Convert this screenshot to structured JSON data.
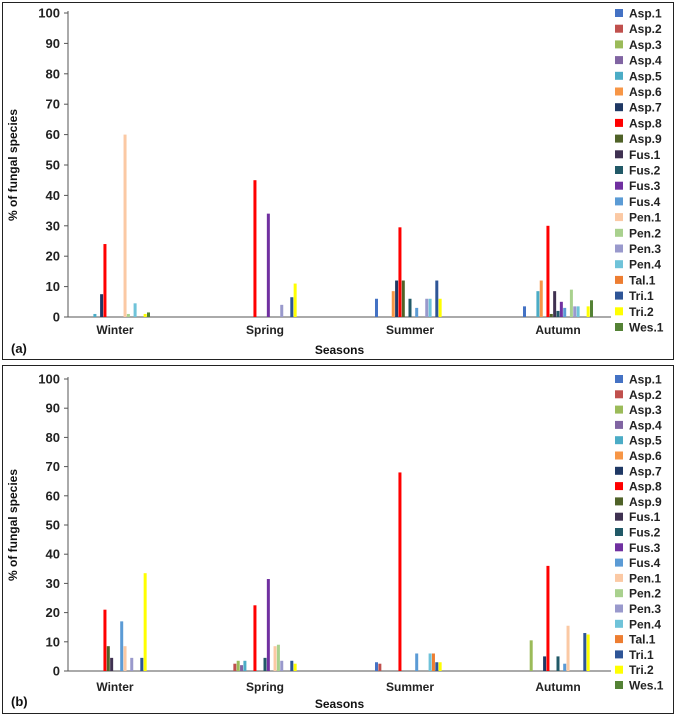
{
  "chart_data": [
    {
      "type": "bar",
      "panel_label": "(a)",
      "xlabel": "Seasons",
      "ylabel": "% of fungal species",
      "ylim": [
        0,
        100
      ],
      "yticks": [
        "0",
        "10",
        "20",
        "30",
        "40",
        "50",
        "60",
        "70",
        "80",
        "90",
        "100"
      ],
      "categories": [
        "Winter",
        "Spring",
        "Summer",
        "Autumn"
      ],
      "series": [
        {
          "name": "Asp.1",
          "color": "#4472C4",
          "values": [
            0,
            0,
            6,
            3.5
          ]
        },
        {
          "name": "Asp.2",
          "color": "#C0504D",
          "values": [
            0,
            0,
            0,
            0
          ]
        },
        {
          "name": "Asp.3",
          "color": "#9BBB59",
          "values": [
            0,
            0,
            0,
            0
          ]
        },
        {
          "name": "Asp.4",
          "color": "#8064A2",
          "values": [
            0,
            0,
            0,
            0
          ]
        },
        {
          "name": "Asp.5",
          "color": "#4BACC6",
          "values": [
            1,
            0,
            0,
            8.5
          ]
        },
        {
          "name": "Asp.6",
          "color": "#F79646",
          "values": [
            0,
            0,
            8.5,
            12
          ]
        },
        {
          "name": "Asp.7",
          "color": "#1F3864",
          "values": [
            7.5,
            0,
            12,
            0
          ]
        },
        {
          "name": "Asp.8",
          "color": "#FF0000",
          "values": [
            24,
            45,
            29.5,
            30
          ]
        },
        {
          "name": "Asp.9",
          "color": "#4F6228",
          "values": [
            0,
            0,
            12,
            1
          ]
        },
        {
          "name": "Fus.1",
          "color": "#3F3151",
          "values": [
            0,
            0,
            0,
            8.5
          ]
        },
        {
          "name": "Fus.2",
          "color": "#215967",
          "values": [
            0,
            0,
            6,
            2
          ]
        },
        {
          "name": "Fus.3",
          "color": "#7030A0",
          "values": [
            0,
            34,
            0,
            5
          ]
        },
        {
          "name": "Fus.4",
          "color": "#5B9BD5",
          "values": [
            0,
            0,
            3,
            3
          ]
        },
        {
          "name": "Pen.1",
          "color": "#FBC9A4",
          "values": [
            60,
            0,
            0,
            0
          ]
        },
        {
          "name": "Pen.2",
          "color": "#A9D18E",
          "values": [
            1,
            0,
            0,
            9
          ]
        },
        {
          "name": "Pen.3",
          "color": "#9999CC",
          "values": [
            0,
            4,
            6,
            3.5
          ]
        },
        {
          "name": "Pen.4",
          "color": "#6FC3D9",
          "values": [
            4.5,
            0,
            6,
            3.5
          ]
        },
        {
          "name": "Tal.1",
          "color": "#ED7D31",
          "values": [
            0,
            0,
            0,
            0
          ]
        },
        {
          "name": "Tri.1",
          "color": "#2E5597",
          "values": [
            0,
            6.5,
            12,
            0
          ]
        },
        {
          "name": "Tri.2",
          "color": "#FFFF00",
          "values": [
            1,
            11,
            6,
            3.5
          ]
        },
        {
          "name": "Wes.1",
          "color": "#548235",
          "values": [
            1.5,
            0,
            0,
            5.5
          ]
        }
      ]
    },
    {
      "type": "bar",
      "panel_label": "(b)",
      "xlabel": "Seasons",
      "ylabel": "% of fungal species",
      "ylim": [
        0,
        100
      ],
      "yticks": [
        "0",
        "10",
        "20",
        "30",
        "40",
        "50",
        "60",
        "70",
        "80",
        "90",
        "100"
      ],
      "categories": [
        "Winter",
        "Spring",
        "Summer",
        "Autumn"
      ],
      "series": [
        {
          "name": "Asp.1",
          "color": "#4472C4",
          "values": [
            0,
            0,
            3,
            0
          ]
        },
        {
          "name": "Asp.2",
          "color": "#C0504D",
          "values": [
            0,
            2.5,
            2.5,
            0
          ]
        },
        {
          "name": "Asp.3",
          "color": "#9BBB59",
          "values": [
            0,
            3.5,
            0,
            10.5
          ]
        },
        {
          "name": "Asp.4",
          "color": "#8064A2",
          "values": [
            0,
            2,
            0,
            0
          ]
        },
        {
          "name": "Asp.5",
          "color": "#4BACC6",
          "values": [
            0,
            3.5,
            0,
            0
          ]
        },
        {
          "name": "Asp.6",
          "color": "#F79646",
          "values": [
            0,
            0,
            0,
            0
          ]
        },
        {
          "name": "Asp.7",
          "color": "#1F3864",
          "values": [
            0,
            0,
            0,
            5
          ]
        },
        {
          "name": "Asp.8",
          "color": "#FF0000",
          "values": [
            21,
            22.5,
            68,
            36
          ]
        },
        {
          "name": "Asp.9",
          "color": "#4F6228",
          "values": [
            8.5,
            0,
            0,
            0
          ]
        },
        {
          "name": "Fus.1",
          "color": "#3F3151",
          "values": [
            4.5,
            0,
            0,
            0
          ]
        },
        {
          "name": "Fus.2",
          "color": "#215967",
          "values": [
            0,
            4.5,
            0,
            5
          ]
        },
        {
          "name": "Fus.3",
          "color": "#7030A0",
          "values": [
            0,
            31.5,
            0,
            0
          ]
        },
        {
          "name": "Fus.4",
          "color": "#5B9BD5",
          "values": [
            17,
            0,
            6,
            2.5
          ]
        },
        {
          "name": "Pen.1",
          "color": "#FBC9A4",
          "values": [
            8.5,
            8.5,
            0,
            15.5
          ]
        },
        {
          "name": "Pen.2",
          "color": "#A9D18E",
          "values": [
            0,
            9,
            0,
            0
          ]
        },
        {
          "name": "Pen.3",
          "color": "#9999CC",
          "values": [
            4.5,
            3.5,
            0,
            0
          ]
        },
        {
          "name": "Pen.4",
          "color": "#6FC3D9",
          "values": [
            0,
            0,
            6,
            0
          ]
        },
        {
          "name": "Tal.1",
          "color": "#ED7D31",
          "values": [
            0,
            0,
            6,
            0
          ]
        },
        {
          "name": "Tri.1",
          "color": "#2E5597",
          "values": [
            4.5,
            3.5,
            3,
            13
          ]
        },
        {
          "name": "Tri.2",
          "color": "#FFFF00",
          "values": [
            33.5,
            2.5,
            3,
            12.5
          ]
        },
        {
          "name": "Wes.1",
          "color": "#548235",
          "values": [
            0,
            0,
            0,
            0
          ]
        }
      ]
    }
  ]
}
